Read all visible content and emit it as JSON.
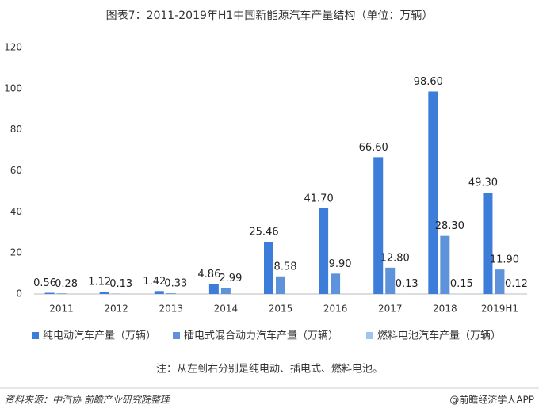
{
  "chart_data": {
    "type": "bar",
    "title": "图表7：2011-2019年H1中国新能源汽车产量结构（单位：万辆）",
    "categories": [
      "2011",
      "2012",
      "2013",
      "2014",
      "2015",
      "2016",
      "2017",
      "2018",
      "2019H1"
    ],
    "series": [
      {
        "name": "纯电动汽车产量（万辆）",
        "color": "#3b7dd8",
        "values": [
          0.56,
          1.12,
          1.42,
          4.86,
          25.46,
          41.7,
          66.6,
          98.6,
          49.3
        ],
        "value_labels": [
          "0.56",
          "1.12",
          "1.42",
          "4.86",
          "25.46",
          "41.70",
          "66.60",
          "98.60",
          "49.30"
        ]
      },
      {
        "name": "插电式混合动力汽车产量（万辆）",
        "color": "#5e93dc",
        "values": [
          0.28,
          0.13,
          0.33,
          2.99,
          8.58,
          9.9,
          12.8,
          28.3,
          11.9
        ],
        "value_labels": [
          "0.28",
          "0.13",
          "0.33",
          "2.99",
          "8.58",
          "9.90",
          "12.80",
          "28.30",
          "11.90"
        ]
      },
      {
        "name": "燃料电池汽车产量（万辆）",
        "color": "#9fc4ef",
        "values": [
          null,
          null,
          null,
          null,
          null,
          null,
          0.13,
          0.15,
          0.12
        ],
        "value_labels": [
          null,
          null,
          null,
          null,
          null,
          null,
          "0.13",
          "0.15",
          "0.12"
        ]
      }
    ],
    "ylim": [
      0,
      120
    ],
    "yticks": [
      0,
      20,
      40,
      60,
      80,
      100,
      120
    ],
    "grid": false,
    "note": "注：从左到右分别是纯电动、插电式、燃料电池。",
    "source": "资料来源：中汽协 前瞻产业研究院整理",
    "brand": "@前瞻经济学人APP"
  }
}
